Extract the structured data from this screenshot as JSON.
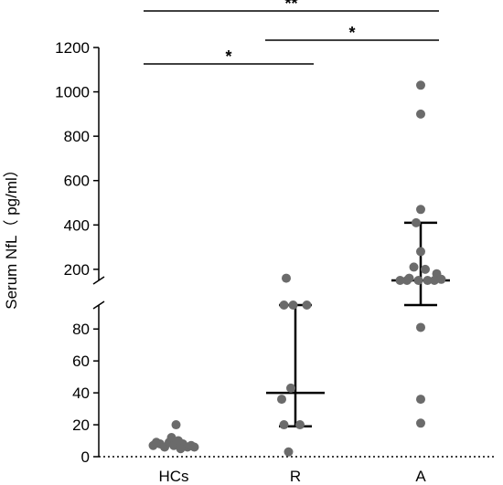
{
  "chart_data": {
    "type": "scatter",
    "ylabel": "Serum NfL（ pg/ml）",
    "categories": [
      "HCs",
      "R",
      "A"
    ],
    "y_axis": {
      "broken": true,
      "lower_range": [
        0,
        95
      ],
      "lower_ticks": [
        "0",
        "20",
        "40",
        "60",
        "80"
      ],
      "upper_range": [
        150,
        1200
      ],
      "upper_ticks": [
        "200",
        "400",
        "600",
        "800",
        "1000",
        "1200"
      ]
    },
    "groups": [
      {
        "name": "HCs",
        "points": [
          {
            "dx": -0.45,
            "y": 7
          },
          {
            "dx": -0.3,
            "y": 8
          },
          {
            "dx": -0.2,
            "y": 6
          },
          {
            "dx": -0.1,
            "y": 9
          },
          {
            "dx": 0.0,
            "y": 7
          },
          {
            "dx": 0.1,
            "y": 10
          },
          {
            "dx": 0.2,
            "y": 8
          },
          {
            "dx": 0.3,
            "y": 6
          },
          {
            "dx": -0.38,
            "y": 9
          },
          {
            "dx": 0.05,
            "y": 20
          },
          {
            "dx": 0.38,
            "y": 7
          },
          {
            "dx": 0.45,
            "y": 6
          },
          {
            "dx": -0.05,
            "y": 12
          },
          {
            "dx": 0.15,
            "y": 5
          }
        ],
        "median": 7,
        "iqr": [
          6,
          9
        ]
      },
      {
        "name": "R",
        "points": [
          {
            "dx": -0.25,
            "y": 145
          },
          {
            "dx": -0.05,
            "y": 148
          },
          {
            "dx": 0.25,
            "y": 146
          },
          {
            "dx": -0.2,
            "y": 160
          },
          {
            "dx": -0.1,
            "y": 43
          },
          {
            "dx": -0.3,
            "y": 36
          },
          {
            "dx": 0.1,
            "y": 20
          },
          {
            "dx": -0.25,
            "y": 20
          },
          {
            "dx": -0.15,
            "y": 3
          }
        ],
        "median": 40,
        "iqr": [
          19,
          98
        ]
      },
      {
        "name": "A",
        "points": [
          {
            "dx": 0.0,
            "y": 1030
          },
          {
            "dx": 0.0,
            "y": 900
          },
          {
            "dx": 0.0,
            "y": 470
          },
          {
            "dx": -0.1,
            "y": 410
          },
          {
            "dx": 0.0,
            "y": 280
          },
          {
            "dx": -0.15,
            "y": 210
          },
          {
            "dx": 0.1,
            "y": 200
          },
          {
            "dx": 0.35,
            "y": 180
          },
          {
            "dx": -0.45,
            "y": 150
          },
          {
            "dx": -0.3,
            "y": 150
          },
          {
            "dx": -0.05,
            "y": 150
          },
          {
            "dx": 0.15,
            "y": 150
          },
          {
            "dx": 0.3,
            "y": 150
          },
          {
            "dx": 0.45,
            "y": 155
          },
          {
            "dx": -0.25,
            "y": 160
          },
          {
            "dx": 0.0,
            "y": 81
          },
          {
            "dx": 0.0,
            "y": 36
          },
          {
            "dx": 0.0,
            "y": 21
          }
        ],
        "median": 150,
        "iqr": [
          130,
          410
        ]
      }
    ],
    "significance": [
      {
        "from": "HCs",
        "to": "A",
        "label": "**"
      },
      {
        "from": "R",
        "to": "A",
        "label": "*"
      },
      {
        "from": "HCs",
        "to": "R",
        "label": "*"
      }
    ],
    "colors": {
      "points": "#6b6b6b",
      "lines": "#000000"
    },
    "grid": false,
    "legend": "none"
  }
}
